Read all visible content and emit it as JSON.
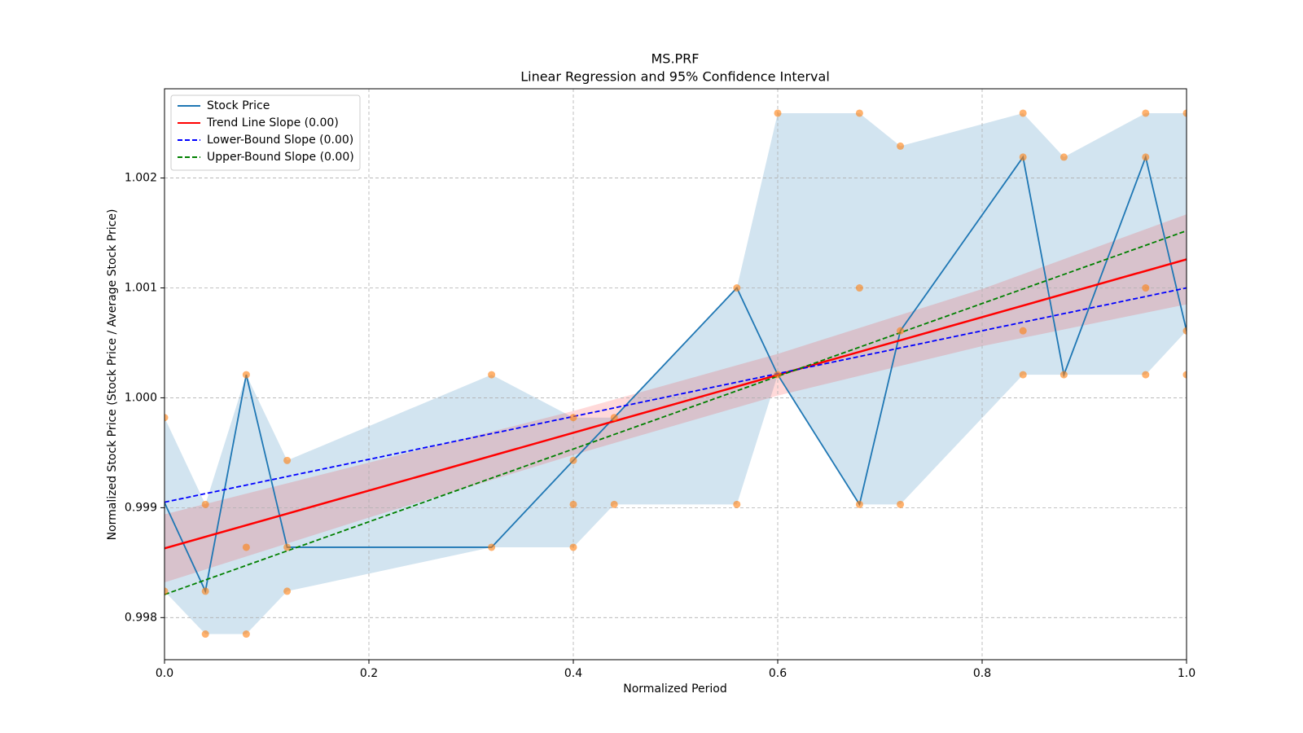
{
  "chart_data": {
    "type": "line",
    "title": "MS.PRF",
    "subtitle": "Linear Regression and 95% Confidence Interval",
    "x_label": "Normalized Period",
    "y_label": "Normalized Stock Price (Stock Price / Average Stock Price)",
    "xlim": [
      0,
      1
    ],
    "ylim": [
      0.997617,
      1.002812
    ],
    "xticks": [
      {
        "value": 0,
        "label": "0.0"
      },
      0.2,
      0.4,
      0.6,
      0.8,
      {
        "value": 1,
        "label": "1.0"
      }
    ],
    "yticks": [
      0.998,
      0.999,
      {
        "value": 1,
        "label": "1.000"
      },
      1.001,
      1.002
    ],
    "grid": true,
    "legend": "upper-left",
    "bands": [
      {
        "color": "#1f77b4",
        "opacity": 0.2,
        "x": [
          0,
          0.04,
          0.08,
          0.12,
          0.32,
          0.4,
          0.44,
          0.56,
          0.6,
          0.68,
          0.72,
          0.84,
          0.88,
          0.96,
          1
        ],
        "lower": [
          0.99824,
          0.99785,
          0.99785,
          0.99824,
          0.99864,
          0.99864,
          0.99903,
          0.99903,
          1.00021,
          0.99903,
          0.99903,
          1.00021,
          1.00021,
          1.00021,
          1.00061
        ],
        "upper": [
          0.99982,
          0.99903,
          1.00021,
          0.99943,
          1.00021,
          0.99982,
          0.99982,
          1.001,
          1.00259,
          1.00259,
          1.00229,
          1.00259,
          1.00219,
          1.00259,
          1.00259
        ]
      },
      {
        "color": "#ff0000",
        "opacity": 0.15,
        "x": [
          0,
          0.2,
          0.4,
          0.6,
          0.8,
          1
        ],
        "lower": [
          0.99832,
          0.99891,
          0.99948,
          1.00002,
          1.00047,
          1.00085
        ],
        "upper": [
          0.99894,
          0.99941,
          0.99988,
          1.0004,
          1.00099,
          1.00167
        ]
      }
    ],
    "series": [
      {
        "name": "Stock Price",
        "color": "#1f77b4",
        "dash": false,
        "x": [
          0,
          0.04,
          0.08,
          0.12,
          0.32,
          0.4,
          0.44,
          0.56,
          0.6,
          0.68,
          0.72,
          0.84,
          0.88,
          0.96,
          1
        ],
        "values": [
          0.999046,
          0.99824,
          1.00021,
          0.99864,
          0.99864,
          0.99943,
          0.99982,
          1.001,
          1.00021,
          0.99903,
          1.00061,
          1.00219,
          1.00021,
          1.00219,
          1.00061
        ]
      },
      {
        "name": "Trend Line Slope (0.00)",
        "color": "#ff0000",
        "dash": false,
        "x": [
          0,
          1
        ],
        "values": [
          0.99863,
          1.00126
        ]
      },
      {
        "name": "Lower-Bound Slope (0.00)",
        "color": "#0000ff",
        "dash": true,
        "x": [
          0,
          1
        ],
        "values": [
          0.99905,
          1.001
        ]
      },
      {
        "name": "Upper-Bound Slope (0.00)",
        "color": "#008000",
        "dash": true,
        "x": [
          0,
          1
        ],
        "values": [
          0.99821,
          1.00152
        ]
      }
    ],
    "points": {
      "color": "#ff7f0e",
      "x": [
        0,
        0,
        0.04,
        0.04,
        0.04,
        0.08,
        0.08,
        0.08,
        0.12,
        0.12,
        0.12,
        0.32,
        0.32,
        0.4,
        0.4,
        0.4,
        0.4,
        0.44,
        0.44,
        0.56,
        0.56,
        0.6,
        0.6,
        0.68,
        0.68,
        0.68,
        0.72,
        0.72,
        0.72,
        0.84,
        0.84,
        0.84,
        0.84,
        0.88,
        0.88,
        0.96,
        0.96,
        0.96,
        0.96,
        1,
        1,
        1
      ],
      "values": [
        0.99982,
        0.99824,
        0.99903,
        0.99824,
        0.99785,
        1.00021,
        0.99864,
        0.99785,
        0.99943,
        0.99864,
        0.99824,
        1.00021,
        0.99864,
        0.99982,
        0.99943,
        0.99903,
        0.99864,
        0.99982,
        0.99903,
        1.001,
        0.99903,
        1.00259,
        1.00021,
        1.00259,
        1.001,
        0.99903,
        1.00229,
        1.00061,
        0.99903,
        1.00259,
        1.00219,
        1.00061,
        1.00021,
        1.00219,
        1.00021,
        1.00259,
        1.00219,
        1.001,
        1.00021,
        1.00259,
        1.00061,
        1.00021
      ]
    }
  }
}
